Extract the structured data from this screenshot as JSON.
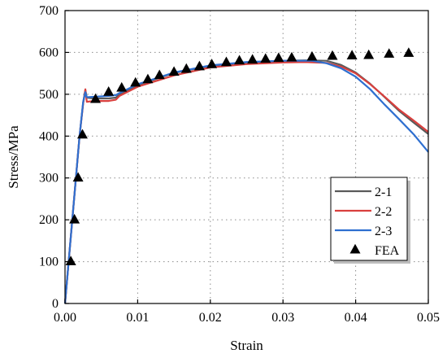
{
  "chart_data": {
    "type": "line",
    "xlabel": "Strain",
    "ylabel": "Stress/MPa",
    "xlim": [
      0,
      0.05
    ],
    "ylim": [
      0,
      700
    ],
    "x_ticks": [
      "0.00",
      "0.01",
      "0.02",
      "0.03",
      "0.04",
      "0.05"
    ],
    "y_ticks": [
      "0",
      "100",
      "200",
      "300",
      "400",
      "500",
      "600",
      "700"
    ],
    "grid": true,
    "legend_position": "bottom-right",
    "series": [
      {
        "name": "2-1",
        "color": "#5a5a5a",
        "points": [
          [
            0,
            0
          ],
          [
            0.0005,
            100
          ],
          [
            0.001,
            200
          ],
          [
            0.0015,
            300
          ],
          [
            0.002,
            400
          ],
          [
            0.0025,
            480
          ],
          [
            0.0028,
            510
          ],
          [
            0.003,
            492
          ],
          [
            0.004,
            490
          ],
          [
            0.006,
            490
          ],
          [
            0.007,
            492
          ],
          [
            0.0075,
            500
          ],
          [
            0.01,
            522
          ],
          [
            0.015,
            551
          ],
          [
            0.02,
            568
          ],
          [
            0.025,
            576
          ],
          [
            0.03,
            580
          ],
          [
            0.033,
            581
          ],
          [
            0.036,
            580
          ],
          [
            0.038,
            570
          ],
          [
            0.04,
            552
          ],
          [
            0.042,
            525
          ],
          [
            0.044,
            493
          ],
          [
            0.046,
            460
          ],
          [
            0.048,
            432
          ],
          [
            0.05,
            405
          ]
        ]
      },
      {
        "name": "2-2",
        "color": "#d9403e",
        "points": [
          [
            0,
            0
          ],
          [
            0.0005,
            100
          ],
          [
            0.001,
            200
          ],
          [
            0.0015,
            300
          ],
          [
            0.002,
            400
          ],
          [
            0.0025,
            478
          ],
          [
            0.0028,
            512
          ],
          [
            0.003,
            482
          ],
          [
            0.004,
            484
          ],
          [
            0.006,
            484
          ],
          [
            0.007,
            487
          ],
          [
            0.0075,
            496
          ],
          [
            0.01,
            518
          ],
          [
            0.015,
            545
          ],
          [
            0.02,
            564
          ],
          [
            0.025,
            572
          ],
          [
            0.03,
            576
          ],
          [
            0.033,
            577
          ],
          [
            0.036,
            575
          ],
          [
            0.038,
            566
          ],
          [
            0.04,
            550
          ],
          [
            0.042,
            524
          ],
          [
            0.044,
            494
          ],
          [
            0.046,
            463
          ],
          [
            0.048,
            437
          ],
          [
            0.05,
            410
          ]
        ]
      },
      {
        "name": "2-3",
        "color": "#2e6fd0",
        "points": [
          [
            0,
            0
          ],
          [
            0.0005,
            100
          ],
          [
            0.001,
            200
          ],
          [
            0.0015,
            300
          ],
          [
            0.002,
            400
          ],
          [
            0.0025,
            482
          ],
          [
            0.0028,
            505
          ],
          [
            0.003,
            493
          ],
          [
            0.004,
            494
          ],
          [
            0.006,
            496
          ],
          [
            0.007,
            498
          ],
          [
            0.0075,
            503
          ],
          [
            0.01,
            524
          ],
          [
            0.015,
            552
          ],
          [
            0.02,
            569
          ],
          [
            0.025,
            577
          ],
          [
            0.03,
            580
          ],
          [
            0.034,
            580
          ],
          [
            0.036,
            574
          ],
          [
            0.038,
            562
          ],
          [
            0.04,
            542
          ],
          [
            0.042,
            512
          ],
          [
            0.044,
            475
          ],
          [
            0.046,
            440
          ],
          [
            0.048,
            404
          ],
          [
            0.05,
            362
          ]
        ]
      },
      {
        "name": "FEA",
        "color": "#000000",
        "marker": "triangle",
        "points": [
          [
            0.0008,
            100
          ],
          [
            0.0013,
            200
          ],
          [
            0.0018,
            300
          ],
          [
            0.0024,
            403
          ],
          [
            0.0042,
            488
          ],
          [
            0.006,
            505
          ],
          [
            0.0078,
            515
          ],
          [
            0.0097,
            527
          ],
          [
            0.0114,
            535
          ],
          [
            0.013,
            545
          ],
          [
            0.015,
            553
          ],
          [
            0.0167,
            560
          ],
          [
            0.0185,
            566
          ],
          [
            0.0202,
            571
          ],
          [
            0.0222,
            576
          ],
          [
            0.024,
            580
          ],
          [
            0.0258,
            582
          ],
          [
            0.0276,
            584
          ],
          [
            0.0294,
            586
          ],
          [
            0.0312,
            587
          ],
          [
            0.034,
            589
          ],
          [
            0.0368,
            591
          ],
          [
            0.0395,
            592
          ],
          [
            0.0418,
            593
          ],
          [
            0.0446,
            596
          ],
          [
            0.0473,
            598
          ]
        ]
      }
    ]
  }
}
